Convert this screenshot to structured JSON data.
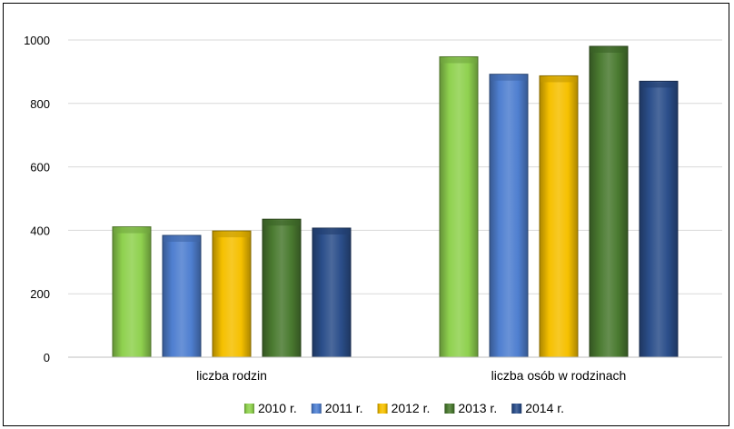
{
  "chart_data": {
    "type": "bar",
    "title": "",
    "xlabel": "",
    "ylabel": "",
    "ylim": [
      0,
      1000
    ],
    "yticks": [
      0,
      200,
      400,
      600,
      800,
      1000
    ],
    "grid": true,
    "legend_position": "bottom",
    "categories": [
      "liczba rodzin",
      "liczba osób w rodzinach"
    ],
    "series": [
      {
        "name": "2010 r.",
        "color": "#8fd14f",
        "values": [
          411,
          947
        ]
      },
      {
        "name": "2011 r.",
        "color": "#4f7fd0",
        "values": [
          384,
          892
        ]
      },
      {
        "name": "2012 r.",
        "color": "#f5c000",
        "values": [
          398,
          887
        ]
      },
      {
        "name": "2013 r.",
        "color": "#4a7a30",
        "values": [
          435,
          980
        ]
      },
      {
        "name": "2014 r.",
        "color": "#2b4e8a",
        "values": [
          407,
          870
        ]
      }
    ]
  }
}
